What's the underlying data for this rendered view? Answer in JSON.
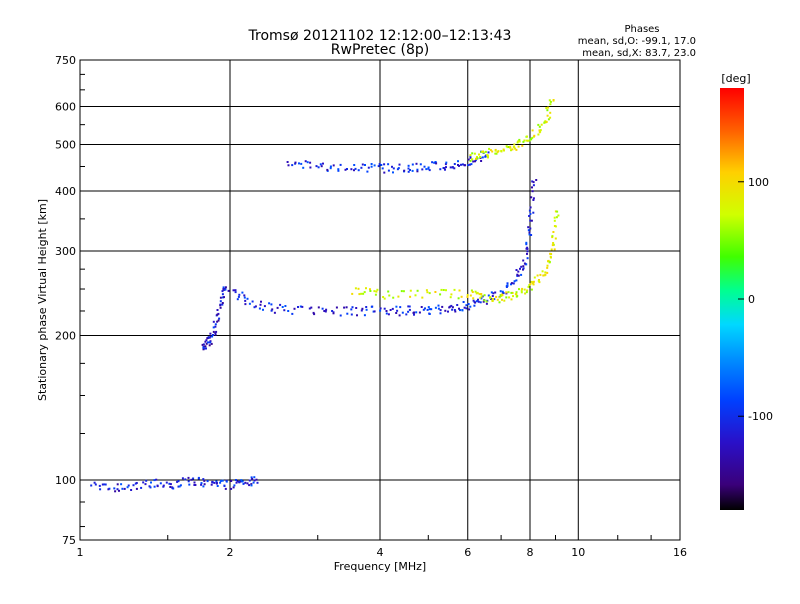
{
  "chart_data": {
    "type": "scatter",
    "title": "Tromsø 20121102 12:12:00–12:13:43",
    "subtitle": "RwPretec (8p)",
    "xlabel": "Frequency [MHz]",
    "ylabel": "Stationary phase Virtual Height [km]",
    "x_scale": "log",
    "y_scale": "log",
    "xlim": [
      1,
      16
    ],
    "ylim": [
      75,
      750
    ],
    "x_ticks": [
      "1",
      "2",
      "4",
      "6",
      "8",
      "10",
      "16"
    ],
    "y_ticks": [
      "75",
      "100",
      "200",
      "300",
      "400",
      "500",
      "600",
      "750"
    ],
    "grid": true,
    "stats": {
      "title": "Phases",
      "line_o": "mean, sd,O: -99.1, 17.0",
      "line_x": "mean, sd,X: 83.7, 23.0"
    },
    "colorbar": {
      "label": "[deg]",
      "ticks": [
        "100",
        "0",
        "-100"
      ],
      "tick_values": [
        100,
        0,
        -100
      ],
      "range": [
        -180,
        180
      ]
    },
    "traces": [
      {
        "description": "E-region trace",
        "phase_deg": -110,
        "x": [
          1.05,
          1.2,
          1.35,
          1.5,
          1.65,
          1.8,
          1.95,
          2.1,
          2.25
        ],
        "y": [
          98,
          97,
          99,
          98,
          100,
          99,
          98,
          99,
          100
        ]
      },
      {
        "description": "Es/low F trace",
        "phase_deg": -120,
        "x": [
          1.75,
          1.8,
          1.85,
          1.9,
          1.95
        ],
        "y": [
          190,
          195,
          205,
          230,
          255
        ]
      },
      {
        "description": "F-region O-mode trace",
        "phase_deg": -110,
        "x": [
          2.0,
          2.2,
          2.5,
          3.0,
          3.5,
          4.0,
          4.5,
          5.0,
          5.5,
          6.0,
          6.5,
          7.0,
          7.5,
          7.8,
          8.0,
          8.1
        ],
        "y": [
          250,
          235,
          228,
          226,
          226,
          226,
          226,
          227,
          228,
          232,
          238,
          248,
          265,
          290,
          340,
          420
        ]
      },
      {
        "description": "F-region X-mode trace",
        "phase_deg": 80,
        "x": [
          3.5,
          4.0,
          5.0,
          6.0,
          6.5,
          7.0,
          7.5,
          8.0,
          8.5,
          8.8,
          9.0
        ],
        "y": [
          250,
          245,
          245,
          245,
          240,
          240,
          245,
          255,
          270,
          300,
          360
        ]
      },
      {
        "description": "Multi-hop O-mode echo",
        "phase_deg": -110,
        "x": [
          2.6,
          3.0,
          3.5,
          4.0,
          4.5,
          5.0,
          5.5,
          6.0,
          6.5
        ],
        "y": [
          460,
          450,
          448,
          448,
          450,
          452,
          455,
          465,
          480
        ]
      },
      {
        "description": "Multi-hop X-mode echo",
        "phase_deg": 80,
        "x": [
          6.0,
          6.5,
          7.0,
          7.5,
          8.0,
          8.5,
          8.8
        ],
        "y": [
          470,
          480,
          490,
          500,
          520,
          550,
          620
        ]
      }
    ]
  }
}
